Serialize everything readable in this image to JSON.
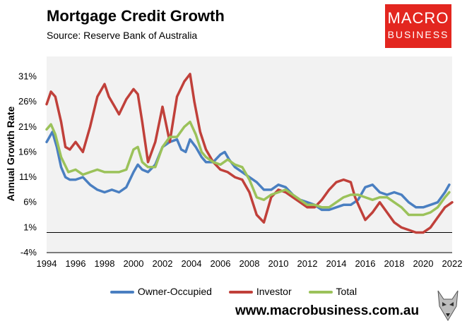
{
  "header": {
    "title": "Mortgage Credit Growth",
    "subtitle": "Source: Reserve Bank of Australia"
  },
  "logo": {
    "line1": "MACRO",
    "line2": "BUSINESS"
  },
  "footer": {
    "url": "www.macrobusiness.com.au"
  },
  "colors": {
    "owner": "#4a7fc1",
    "investor": "#c0403a",
    "total": "#9bc25a",
    "plot_bg": "#f2f2f2",
    "logo_bg": "#e3261f"
  },
  "chart_data": {
    "type": "line",
    "title": "Mortgage Credit Growth",
    "xlabel": "",
    "ylabel": "Annual Growth Rate",
    "xlim": [
      1994,
      2022
    ],
    "ylim": [
      -4,
      35
    ],
    "yticks": [
      -4,
      1,
      6,
      11,
      16,
      21,
      26,
      31
    ],
    "ytick_labels": [
      "-4%",
      "1%",
      "6%",
      "11%",
      "16%",
      "21%",
      "26%",
      "31%"
    ],
    "xticks": [
      1994,
      1996,
      1998,
      2000,
      2002,
      2004,
      2006,
      2008,
      2010,
      2012,
      2014,
      2016,
      2018,
      2020,
      2022
    ],
    "xtick_labels": [
      "1994",
      "1996",
      "1998",
      "2000",
      "2002",
      "2004",
      "2006",
      "2008",
      "2010",
      "2012",
      "2014",
      "2016",
      "2018",
      "2020",
      "2022"
    ],
    "legend_position": "bottom",
    "series": [
      {
        "name": "Owner-Occupied",
        "color": "#4a7fc1",
        "x": [
          1994,
          1994.4,
          1994.7,
          1995,
          1995.3,
          1995.6,
          1996,
          1996.5,
          1997,
          1997.5,
          1998,
          1998.5,
          1999,
          1999.5,
          2000,
          2000.3,
          2000.6,
          2001,
          2001.5,
          2002,
          2002.5,
          2003,
          2003.3,
          2003.6,
          2003.9,
          2004.3,
          2004.7,
          2005,
          2005.5,
          2006,
          2006.3,
          2006.6,
          2007,
          2007.5,
          2008,
          2008.5,
          2009,
          2009.5,
          2010,
          2010.5,
          2011,
          2011.5,
          2012,
          2012.5,
          2013,
          2013.5,
          2014,
          2014.5,
          2015,
          2015.5,
          2016,
          2016.5,
          2017,
          2017.5,
          2018,
          2018.5,
          2019,
          2019.5,
          2020,
          2020.5,
          2021,
          2021.5,
          2021.8
        ],
        "values": [
          18,
          20,
          17,
          13,
          11,
          10.5,
          10.5,
          11,
          9.5,
          8.5,
          8,
          8.5,
          8,
          9,
          12,
          13.5,
          12.5,
          12,
          13.5,
          17,
          18,
          18.5,
          16.5,
          16,
          18.5,
          17,
          15,
          14,
          14,
          15.5,
          16,
          14.5,
          13,
          12,
          11,
          10,
          8.5,
          8.5,
          9.5,
          9,
          7.5,
          6.5,
          6,
          5.5,
          4.5,
          4.5,
          5,
          5.5,
          5.5,
          6.5,
          9,
          9.5,
          8,
          7.5,
          8,
          7.5,
          6,
          5,
          5,
          5.5,
          6,
          8,
          9.5
        ]
      },
      {
        "name": "Investor",
        "color": "#c0403a",
        "x": [
          1994,
          1994.3,
          1994.6,
          1995,
          1995.3,
          1995.6,
          1996,
          1996.5,
          1997,
          1997.5,
          1998,
          1998.3,
          1998.7,
          1999,
          1999.5,
          2000,
          2000.3,
          2000.6,
          2001,
          2001.5,
          2002,
          2002.5,
          2003,
          2003.5,
          2003.9,
          2004.2,
          2004.6,
          2005,
          2005.5,
          2006,
          2006.5,
          2007,
          2007.5,
          2008,
          2008.5,
          2009,
          2009.5,
          2010,
          2010.5,
          2011,
          2011.5,
          2012,
          2012.5,
          2013,
          2013.5,
          2014,
          2014.5,
          2015,
          2015.3,
          2015.6,
          2016,
          2016.5,
          2017,
          2017.5,
          2018,
          2018.5,
          2019,
          2019.5,
          2020,
          2020.5,
          2021,
          2021.5,
          2022
        ],
        "values": [
          25.5,
          28,
          27,
          22,
          17,
          16.5,
          18,
          16,
          21,
          27,
          29.5,
          27,
          25,
          23.5,
          26.5,
          28.5,
          27.5,
          22,
          14,
          18,
          25,
          18,
          27,
          30,
          31.5,
          26,
          20,
          16.5,
          14,
          12.5,
          12,
          11,
          10.5,
          8,
          3.5,
          2,
          7,
          8.5,
          8,
          7,
          6,
          5,
          5,
          6.5,
          8.5,
          10,
          10.5,
          10,
          7,
          5,
          2.5,
          4,
          6,
          4,
          2,
          1,
          0.5,
          0,
          0,
          1,
          3,
          5,
          6
        ]
      },
      {
        "name": "Total",
        "color": "#9bc25a",
        "x": [
          1994,
          1994.3,
          1994.6,
          1995,
          1995.5,
          1996,
          1996.5,
          1997,
          1997.5,
          1998,
          1998.5,
          1999,
          1999.5,
          2000,
          2000.3,
          2000.6,
          2001,
          2001.5,
          2002,
          2002.5,
          2003,
          2003.5,
          2003.9,
          2004.3,
          2004.7,
          2005,
          2005.5,
          2006,
          2006.5,
          2007,
          2007.5,
          2008,
          2008.5,
          2009,
          2009.5,
          2010,
          2010.5,
          2011,
          2011.5,
          2012,
          2012.5,
          2013,
          2013.5,
          2014,
          2014.5,
          2015,
          2015.5,
          2016,
          2016.5,
          2017,
          2017.5,
          2018,
          2018.5,
          2019,
          2019.5,
          2020,
          2020.5,
          2021,
          2021.5,
          2021.8
        ],
        "values": [
          20.5,
          21.5,
          19.5,
          15,
          12,
          12.5,
          11.5,
          12,
          12.5,
          12,
          12,
          12,
          12.5,
          16.5,
          17,
          14,
          13,
          13,
          17,
          19,
          19,
          21,
          22,
          19.5,
          16,
          15,
          14,
          13.5,
          14.5,
          13.5,
          13,
          10.5,
          7,
          6.5,
          7.5,
          8,
          8.5,
          7.5,
          6.5,
          5.5,
          5.5,
          5,
          5,
          6,
          7,
          7.5,
          7.5,
          7,
          6.5,
          7,
          7,
          6,
          5,
          3.5,
          3.5,
          3.5,
          4,
          5,
          7,
          8
        ]
      }
    ]
  }
}
